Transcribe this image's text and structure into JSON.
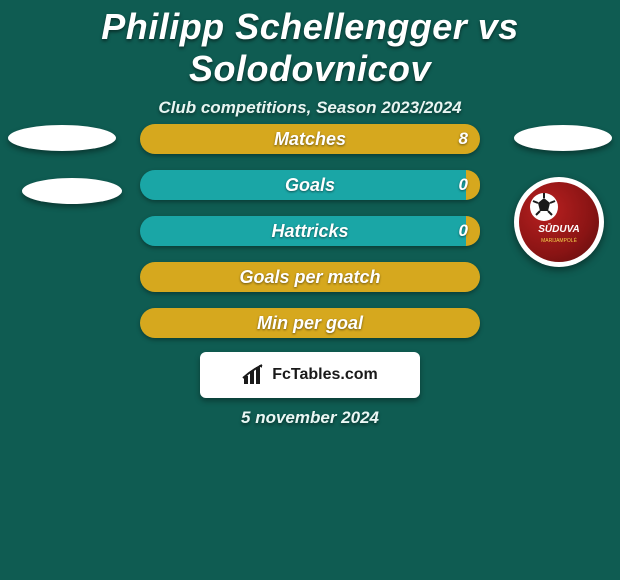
{
  "title": "Philipp Schellengger vs Solodovnicov",
  "subtitle": "Club competitions, Season 2023/2024",
  "colors": {
    "background": "#0f5c52",
    "left_bar": "#1aa6a6",
    "right_bar": "#d6a81e",
    "neutral_left": "#1aa6a6",
    "text": "#ffffff"
  },
  "bars": [
    {
      "label": "Matches",
      "right_value": "8",
      "left_pct": 0,
      "right_pct": 100
    },
    {
      "label": "Goals",
      "right_value": "0",
      "left_pct": 96,
      "right_pct": 4
    },
    {
      "label": "Hattricks",
      "right_value": "0",
      "left_pct": 96,
      "right_pct": 4
    },
    {
      "label": "Goals per match",
      "right_value": "",
      "left_pct": 0,
      "right_pct": 100
    },
    {
      "label": "Min per goal",
      "right_value": "",
      "left_pct": 0,
      "right_pct": 100
    }
  ],
  "brand": "FcTables.com",
  "badge_text": "SŪDUVA",
  "date": "5 november 2024"
}
